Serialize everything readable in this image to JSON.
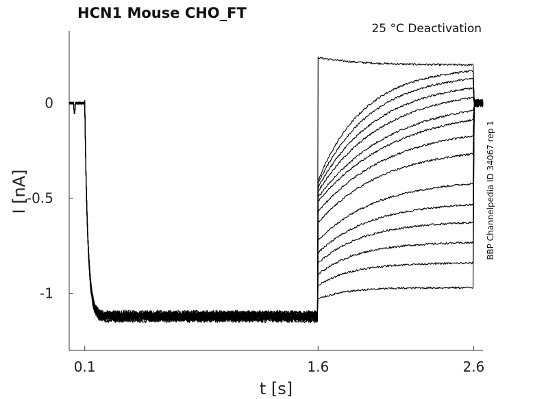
{
  "chart_data": {
    "type": "line",
    "title": "HCN1  Mouse  CHO_FT",
    "annotation": "25 °C  Deactivation",
    "side_note": "BBP Channelpedia ID 34067 rep 1",
    "xlabel": "t [s]",
    "ylabel": "I [nA]",
    "xlim": [
      0.0,
      2.66
    ],
    "ylim": [
      -1.3,
      0.38
    ],
    "x_ticks": [
      0.1,
      1.6,
      2.6
    ],
    "x_tick_labels": [
      "0.1",
      "1.6",
      "2.6"
    ],
    "y_ticks": [
      0,
      -0.5,
      -1
    ],
    "y_tick_labels": [
      "0",
      "-0.5",
      "-1"
    ],
    "grid": false,
    "line_color": "#000000",
    "protocol": {
      "baseline_current": 0.0,
      "step_on_time": 0.1,
      "activation_tau": 0.02,
      "activated_current": -1.12,
      "step_off_time": 1.6,
      "test_end_time": 2.6,
      "end_time": 2.66
    },
    "series_test_levels": [
      0.2,
      0.19,
      0.16,
      0.12,
      0.08,
      0.02,
      -0.02,
      -0.12,
      -0.23,
      -0.4,
      -0.52,
      -0.62,
      -0.73,
      -0.84,
      -0.97
    ]
  }
}
